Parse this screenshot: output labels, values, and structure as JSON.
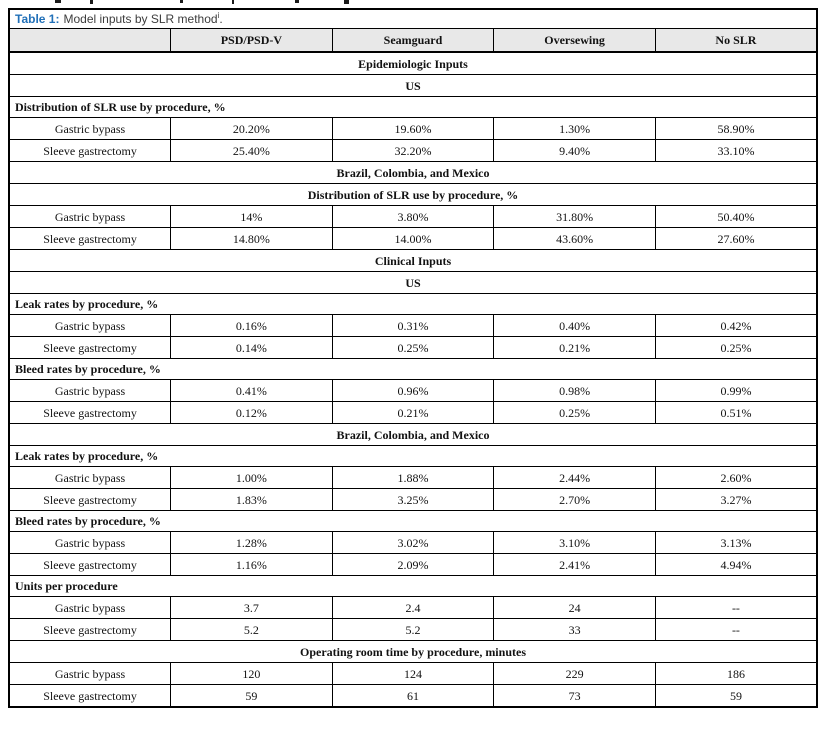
{
  "colors": {
    "caption_accent_blue": "#2170b8",
    "caption_text_gray": "#3d3d3d",
    "header_row_background": "#e8e8e8",
    "table_border": "#000000",
    "body_text": "#121212"
  },
  "caption": {
    "label": "Table 1:",
    "text": "Model inputs by SLR method",
    "footnote_marker": "i",
    "suffix": "."
  },
  "table": {
    "columns": [
      "",
      "PSD/PSD-V",
      "Seamguard",
      "Oversewing",
      "No SLR"
    ],
    "rows": [
      {
        "type": "section_center",
        "label": "Epidemiologic Inputs"
      },
      {
        "type": "section_center",
        "label": "US"
      },
      {
        "type": "section_left",
        "label": "Distribution of SLR use by procedure, %"
      },
      {
        "type": "data",
        "label": "Gastric bypass",
        "values": [
          "20.20%",
          "19.60%",
          "1.30%",
          "58.90%"
        ]
      },
      {
        "type": "data",
        "label": "Sleeve gastrectomy",
        "values": [
          "25.40%",
          "32.20%",
          "9.40%",
          "33.10%"
        ]
      },
      {
        "type": "section_center",
        "label": "Brazil, Colombia, and Mexico"
      },
      {
        "type": "section_center",
        "label": "Distribution of SLR use by procedure, %"
      },
      {
        "type": "data",
        "label": "Gastric bypass",
        "values": [
          "14%",
          "3.80%",
          "31.80%",
          "50.40%"
        ]
      },
      {
        "type": "data",
        "label": "Sleeve gastrectomy",
        "values": [
          "14.80%",
          "14.00%",
          "43.60%",
          "27.60%"
        ]
      },
      {
        "type": "section_center",
        "label": "Clinical Inputs"
      },
      {
        "type": "section_center",
        "label": "US"
      },
      {
        "type": "section_left",
        "label": "Leak rates by procedure, %"
      },
      {
        "type": "data",
        "label": "Gastric bypass",
        "values": [
          "0.16%",
          "0.31%",
          "0.40%",
          "0.42%"
        ]
      },
      {
        "type": "data",
        "label": "Sleeve gastrectomy",
        "values": [
          "0.14%",
          "0.25%",
          "0.21%",
          "0.25%"
        ]
      },
      {
        "type": "section_left",
        "label": "Bleed rates by procedure, %"
      },
      {
        "type": "data",
        "label": "Gastric bypass",
        "values": [
          "0.41%",
          "0.96%",
          "0.98%",
          "0.99%"
        ]
      },
      {
        "type": "data",
        "label": "Sleeve gastrectomy",
        "values": [
          "0.12%",
          "0.21%",
          "0.25%",
          "0.51%"
        ]
      },
      {
        "type": "section_center",
        "label": "Brazil, Colombia, and Mexico"
      },
      {
        "type": "section_left",
        "label": "Leak rates by procedure, %"
      },
      {
        "type": "data",
        "label": "Gastric bypass",
        "values": [
          "1.00%",
          "1.88%",
          "2.44%",
          "2.60%"
        ]
      },
      {
        "type": "data",
        "label": "Sleeve gastrectomy",
        "values": [
          "1.83%",
          "3.25%",
          "2.70%",
          "3.27%"
        ]
      },
      {
        "type": "section_left",
        "label": "Bleed rates by procedure, %"
      },
      {
        "type": "data",
        "label": "Gastric bypass",
        "values": [
          "1.28%",
          "3.02%",
          "3.10%",
          "3.13%"
        ]
      },
      {
        "type": "data",
        "label": "Sleeve gastrectomy",
        "values": [
          "1.16%",
          "2.09%",
          "2.41%",
          "4.94%"
        ]
      },
      {
        "type": "section_left",
        "label": "Units per procedure"
      },
      {
        "type": "data",
        "label": "Gastric bypass",
        "values": [
          "3.7",
          "2.4",
          "24",
          "--"
        ]
      },
      {
        "type": "data",
        "label": "Sleeve gastrectomy",
        "values": [
          "5.2",
          "5.2",
          "33",
          "--"
        ]
      },
      {
        "type": "section_center",
        "label": "Operating room time by procedure, minutes"
      },
      {
        "type": "data",
        "label": "Gastric bypass",
        "values": [
          "120",
          "124",
          "229",
          "186"
        ]
      },
      {
        "type": "data",
        "label": "Sleeve gastrectomy",
        "values": [
          "59",
          "61",
          "73",
          "59"
        ]
      }
    ]
  }
}
